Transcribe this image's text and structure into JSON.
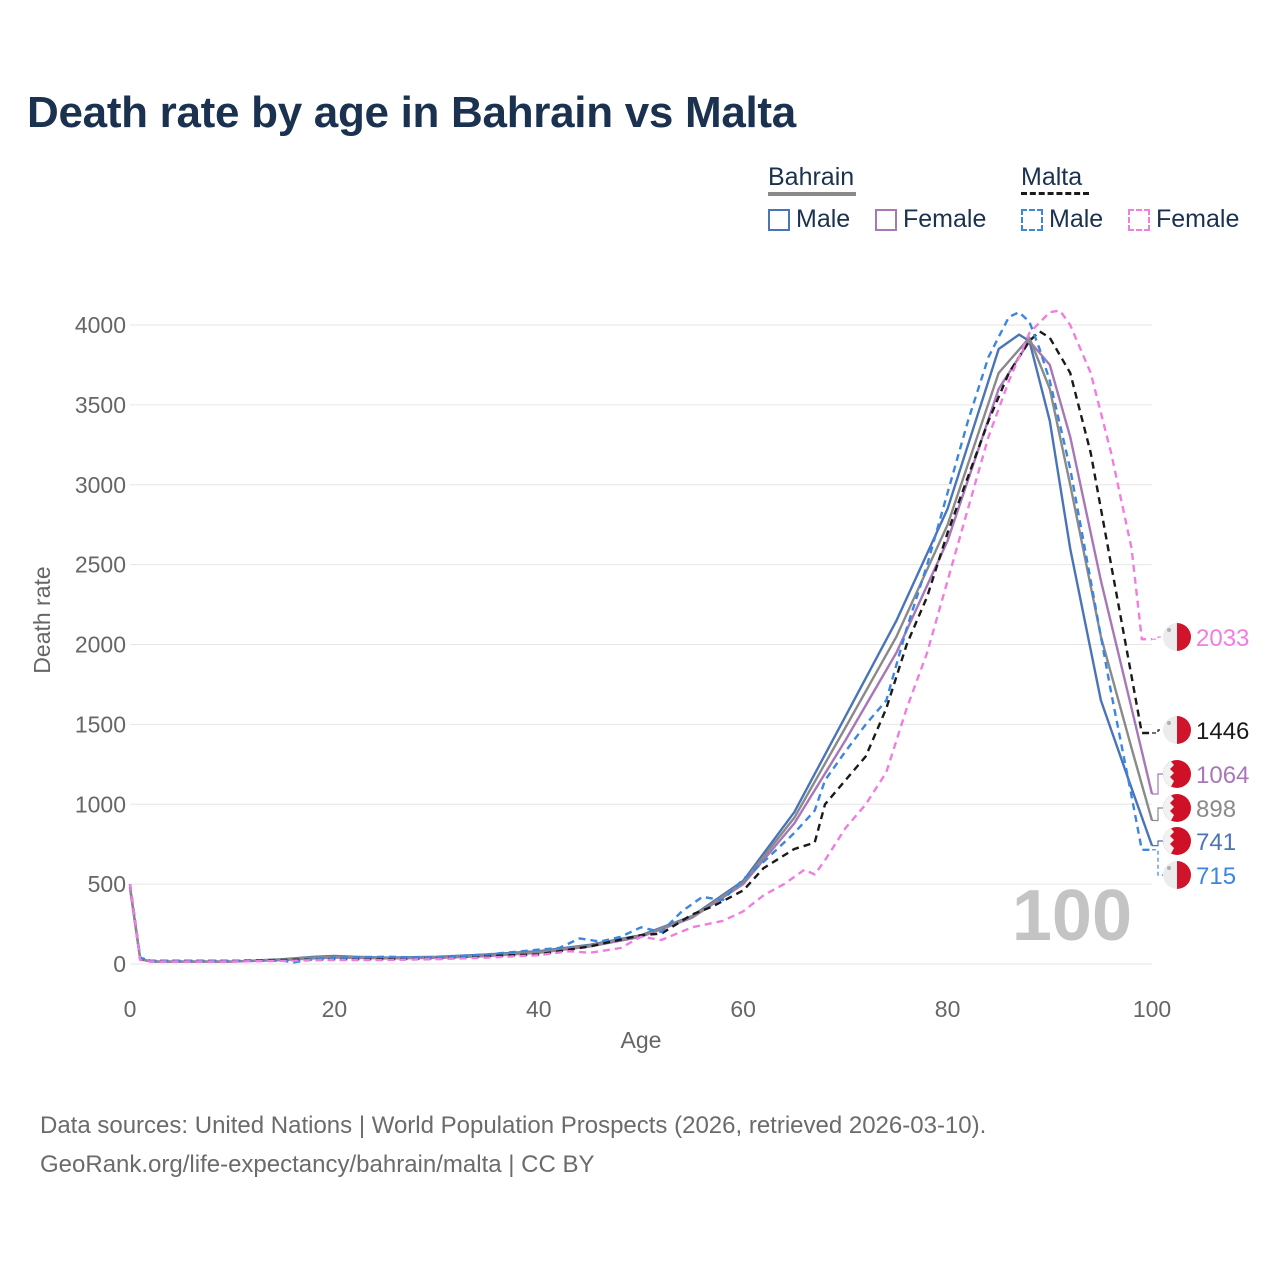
{
  "title": "Death rate by age in Bahrain vs Malta",
  "legend": {
    "groups": [
      {
        "name": "Bahrain",
        "line_color": "#8a8a8a",
        "line_style": "solid"
      },
      {
        "name": "Malta",
        "line_color": "#1a1a1a",
        "line_style": "dashed"
      }
    ],
    "items": [
      {
        "label": "Male",
        "group": "Bahrain",
        "color": "#4a74b8",
        "style": "solid"
      },
      {
        "label": "Female",
        "group": "Bahrain",
        "color": "#a877b8",
        "style": "solid"
      },
      {
        "label": "Male",
        "group": "Malta",
        "color": "#3a86e0",
        "style": "dashed"
      },
      {
        "label": "Female",
        "group": "Malta",
        "color": "#f07de0",
        "style": "dashed"
      }
    ]
  },
  "chart_data": {
    "type": "line",
    "xlabel": "Age",
    "ylabel": "Death rate",
    "xlim": [
      0,
      100
    ],
    "ylim": [
      0,
      4000
    ],
    "x_ticks": [
      0,
      20,
      40,
      60,
      80,
      100
    ],
    "y_ticks": [
      0,
      500,
      1000,
      1500,
      2000,
      2500,
      3000,
      3500,
      4000
    ],
    "watermark": "100",
    "series": [
      {
        "name": "Bahrain Male",
        "color": "#4a74b8",
        "dash": "",
        "end_label": "741",
        "flag": "bahrain",
        "x": [
          0,
          1,
          2,
          5,
          10,
          15,
          18,
          20,
          22,
          25,
          30,
          35,
          40,
          45,
          50,
          55,
          60,
          65,
          70,
          75,
          80,
          85,
          87,
          88,
          90,
          92,
          95,
          98,
          100
        ],
        "y": [
          480,
          35,
          15,
          15,
          15,
          30,
          45,
          50,
          45,
          40,
          45,
          60,
          80,
          120,
          180,
          300,
          520,
          950,
          1550,
          2150,
          2850,
          3850,
          3940,
          3900,
          3400,
          2600,
          1650,
          1100,
          741
        ]
      },
      {
        "name": "Bahrain Female",
        "color": "#a877b8",
        "dash": "",
        "end_label": "1064",
        "flag": "bahrain",
        "x": [
          0,
          1,
          2,
          5,
          10,
          15,
          18,
          20,
          22,
          25,
          30,
          35,
          40,
          45,
          50,
          55,
          60,
          65,
          70,
          75,
          80,
          85,
          88,
          90,
          92,
          95,
          98,
          100
        ],
        "y": [
          480,
          30,
          15,
          15,
          15,
          25,
          35,
          40,
          38,
          35,
          38,
          50,
          70,
          110,
          170,
          290,
          500,
          880,
          1400,
          1950,
          2650,
          3600,
          3900,
          3750,
          3300,
          2400,
          1600,
          1064
        ]
      },
      {
        "name": "Bahrain",
        "color": "#8a8a8a",
        "dash": "",
        "end_label": "898",
        "flag": "bahrain",
        "x": [
          0,
          1,
          2,
          5,
          10,
          15,
          18,
          20,
          22,
          25,
          30,
          35,
          40,
          45,
          50,
          55,
          60,
          65,
          70,
          75,
          80,
          85,
          88,
          90,
          92,
          95,
          98,
          100
        ],
        "y": [
          480,
          32,
          15,
          15,
          15,
          28,
          40,
          45,
          42,
          38,
          42,
          55,
          75,
          115,
          175,
          295,
          510,
          915,
          1480,
          2050,
          2750,
          3700,
          3920,
          3600,
          3000,
          2050,
          1350,
          898
        ]
      },
      {
        "name": "Malta",
        "color": "#1a1a1a",
        "dash": "7,5",
        "end_label": "1446",
        "flag": "malta",
        "x": [
          0,
          1,
          2,
          5,
          10,
          15,
          20,
          25,
          30,
          35,
          40,
          45,
          50,
          52,
          55,
          57,
          60,
          62,
          65,
          66,
          67,
          68,
          70,
          72,
          74,
          76,
          78,
          80,
          82,
          84,
          86,
          88,
          89,
          90,
          92,
          94,
          96,
          98,
          99,
          100
        ],
        "y": [
          500,
          30,
          20,
          20,
          20,
          25,
          30,
          30,
          35,
          50,
          60,
          110,
          180,
          190,
          310,
          360,
          460,
          600,
          720,
          740,
          760,
          1000,
          1150,
          1300,
          1600,
          2000,
          2300,
          2700,
          3050,
          3400,
          3700,
          3900,
          3960,
          3920,
          3700,
          3200,
          2500,
          1800,
          1446,
          1446
        ]
      },
      {
        "name": "Malta Male",
        "color": "#3a86e0",
        "dash": "7,5",
        "end_label": "715",
        "flag": "malta",
        "x": [
          0,
          1,
          2,
          5,
          10,
          15,
          16,
          18,
          20,
          25,
          30,
          35,
          40,
          42,
          44,
          46,
          48,
          50,
          52,
          54,
          56,
          58,
          60,
          62,
          65,
          67,
          68,
          70,
          72,
          74,
          76,
          78,
          80,
          82,
          84,
          86,
          87,
          88,
          89,
          90,
          92,
          94,
          96,
          98,
          99,
          100
        ],
        "y": [
          500,
          40,
          20,
          20,
          20,
          20,
          10,
          30,
          40,
          45,
          40,
          60,
          90,
          100,
          160,
          140,
          170,
          230,
          200,
          330,
          420,
          400,
          530,
          640,
          820,
          960,
          1150,
          1330,
          1500,
          1650,
          2100,
          2500,
          2950,
          3400,
          3800,
          4050,
          4080,
          4020,
          3850,
          3650,
          3100,
          2400,
          1700,
          1050,
          715,
          715
        ]
      },
      {
        "name": "Malta Female",
        "color": "#f07de0",
        "dash": "7,5",
        "end_label": "2033",
        "flag": "malta",
        "x": [
          0,
          1,
          2,
          5,
          10,
          15,
          20,
          25,
          30,
          35,
          40,
          43,
          45,
          48,
          50,
          52,
          55,
          58,
          60,
          62,
          64,
          66,
          67,
          68,
          70,
          72,
          74,
          76,
          78,
          80,
          82,
          84,
          86,
          88,
          90,
          91,
          92,
          94,
          96,
          98,
          99,
          100
        ],
        "y": [
          500,
          25,
          15,
          15,
          15,
          20,
          25,
          25,
          30,
          40,
          55,
          80,
          70,
          100,
          170,
          150,
          230,
          270,
          330,
          430,
          500,
          590,
          560,
          650,
          850,
          1000,
          1200,
          1600,
          1950,
          2400,
          2850,
          3300,
          3650,
          3950,
          4080,
          4090,
          4000,
          3700,
          3200,
          2600,
          2033,
          2033
        ]
      }
    ]
  },
  "source": {
    "line1": "Data sources: United Nations | World Population Prospects (2026, retrieved 2026-03-10).",
    "line2": "GeoRank.org/life-expectancy/bahrain/malta | CC BY"
  }
}
